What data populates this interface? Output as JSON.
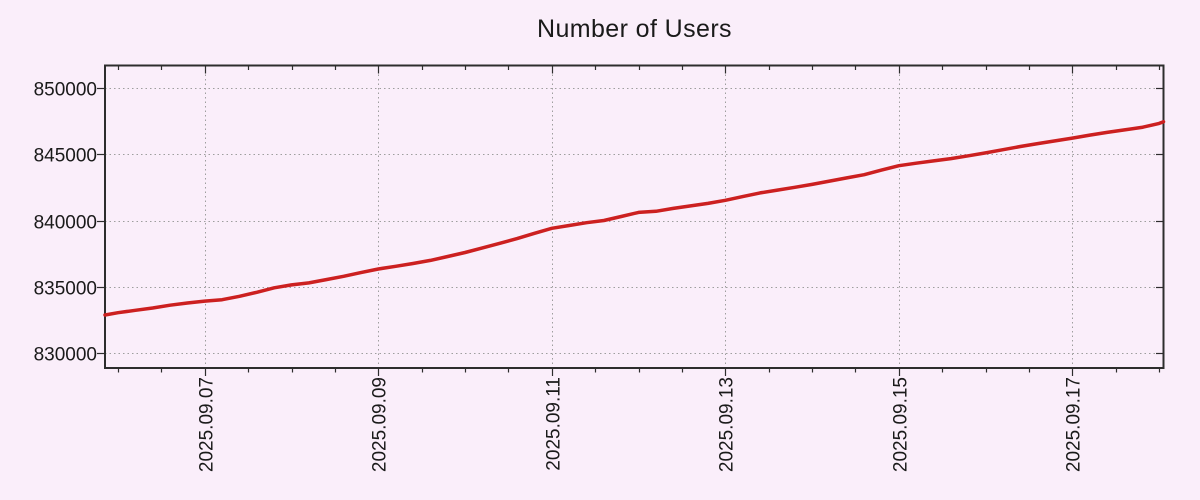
{
  "page": {
    "background": "#faeefa",
    "text_color": "#1a1a1a"
  },
  "chart_data": {
    "type": "line",
    "title": "Number of Users",
    "legend": "none",
    "grid": {
      "color": "#9e9e9e",
      "style": "dotted"
    },
    "axis_color": "#2d2d2d",
    "x_axis": {
      "label": "",
      "range_days": [
        5.85,
        18.05
      ],
      "major_tick_days": [
        7,
        9,
        11,
        13,
        15,
        17
      ],
      "major_tick_labels": [
        "2025.09.07",
        "2025.09.09",
        "2025.09.11",
        "2025.09.13",
        "2025.09.15",
        "2025.09.17"
      ],
      "minor_tick_interval_days": 0.5
    },
    "y_axis": {
      "label": "",
      "range": [
        828880,
        851700
      ],
      "tick_values": [
        830000,
        835000,
        840000,
        845000,
        850000
      ],
      "tick_labels": [
        "830000",
        "835000",
        "840000",
        "845000",
        "850000"
      ]
    },
    "series": [
      {
        "name": "Number of Users",
        "color": "#cc2020",
        "points": [
          [
            5.85,
            832880
          ],
          [
            6.0,
            833050
          ],
          [
            6.2,
            833230
          ],
          [
            6.4,
            833410
          ],
          [
            6.6,
            833620
          ],
          [
            6.8,
            833780
          ],
          [
            7.0,
            833930
          ],
          [
            7.2,
            834030
          ],
          [
            7.4,
            834290
          ],
          [
            7.6,
            834590
          ],
          [
            7.8,
            834930
          ],
          [
            8.0,
            835150
          ],
          [
            8.2,
            835300
          ],
          [
            8.4,
            835550
          ],
          [
            8.6,
            835800
          ],
          [
            8.8,
            836080
          ],
          [
            9.0,
            836350
          ],
          [
            9.2,
            836550
          ],
          [
            9.4,
            836760
          ],
          [
            9.6,
            837000
          ],
          [
            9.8,
            837290
          ],
          [
            10.0,
            837590
          ],
          [
            10.2,
            837940
          ],
          [
            10.4,
            838290
          ],
          [
            10.6,
            838640
          ],
          [
            10.8,
            839040
          ],
          [
            11.0,
            839420
          ],
          [
            11.2,
            839630
          ],
          [
            11.4,
            839840
          ],
          [
            11.6,
            840010
          ],
          [
            11.8,
            840310
          ],
          [
            12.0,
            840620
          ],
          [
            12.2,
            840700
          ],
          [
            12.4,
            840920
          ],
          [
            12.6,
            841110
          ],
          [
            12.8,
            841300
          ],
          [
            13.0,
            841530
          ],
          [
            13.2,
            841810
          ],
          [
            13.4,
            842090
          ],
          [
            13.6,
            842300
          ],
          [
            13.8,
            842510
          ],
          [
            14.0,
            842730
          ],
          [
            14.2,
            842980
          ],
          [
            14.4,
            843220
          ],
          [
            14.6,
            843460
          ],
          [
            14.8,
            843810
          ],
          [
            15.0,
            844140
          ],
          [
            15.2,
            844330
          ],
          [
            15.4,
            844500
          ],
          [
            15.6,
            844680
          ],
          [
            15.8,
            844890
          ],
          [
            16.0,
            845110
          ],
          [
            16.2,
            845350
          ],
          [
            16.4,
            845590
          ],
          [
            16.6,
            845810
          ],
          [
            16.8,
            846010
          ],
          [
            17.0,
            846220
          ],
          [
            17.2,
            846450
          ],
          [
            17.4,
            846650
          ],
          [
            17.6,
            846840
          ],
          [
            17.8,
            847030
          ],
          [
            18.0,
            847330
          ],
          [
            18.05,
            847460
          ]
        ]
      }
    ]
  }
}
